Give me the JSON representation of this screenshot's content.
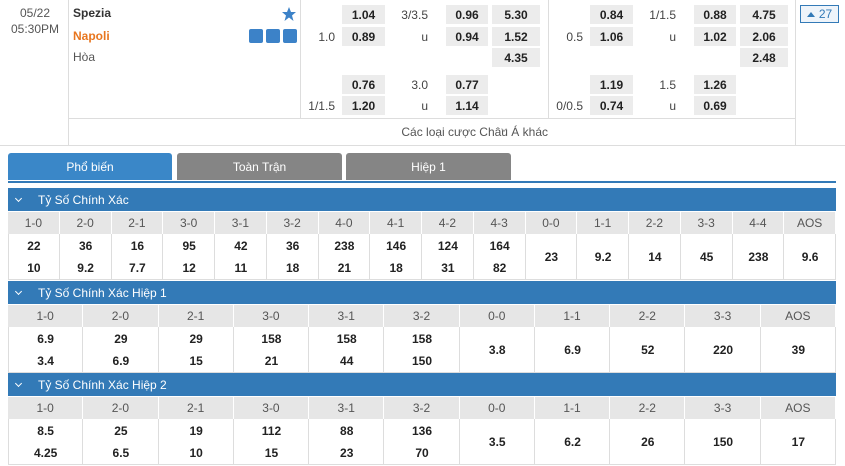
{
  "match": {
    "date": "05/22",
    "time": "05:30PM",
    "home": "Spezia",
    "away": "Napoli",
    "draw": "Hòa",
    "more_count": "27"
  },
  "odds": {
    "full_time": [
      [
        null,
        "1.04",
        "3/3.5",
        "0.96",
        "5.30"
      ],
      [
        "1.0",
        "0.89",
        "u",
        "0.94",
        "1.52"
      ],
      [
        null,
        null,
        null,
        null,
        "4.35"
      ],
      [
        null,
        "0.76",
        "3.0",
        "0.77",
        null
      ],
      [
        "1/1.5",
        "1.20",
        "u",
        "1.14",
        null
      ]
    ],
    "first_half": [
      [
        null,
        "0.84",
        "1/1.5",
        "0.88",
        "4.75"
      ],
      [
        "0.5",
        "1.06",
        "u",
        "1.02",
        "2.06"
      ],
      [
        null,
        null,
        null,
        null,
        "2.48"
      ],
      [
        null,
        "1.19",
        "1.5",
        "1.26",
        null
      ],
      [
        "0/0.5",
        "0.74",
        "u",
        "0.69",
        null
      ]
    ]
  },
  "more_link": "Các loại cược Châu Á khác",
  "tabs": [
    "Phổ biến",
    "Toàn Trận",
    "Hiệp 1"
  ],
  "sections": [
    {
      "title": "Tỷ Số Chính Xác",
      "scores": [
        "1-0",
        "2-0",
        "2-1",
        "3-0",
        "3-1",
        "3-2",
        "4-0",
        "4-1",
        "4-2",
        "4-3",
        "0-0",
        "1-1",
        "2-2",
        "3-3",
        "4-4",
        "AOS"
      ],
      "home": [
        "22",
        "36",
        "16",
        "95",
        "42",
        "36",
        "238",
        "146",
        "124",
        "164"
      ],
      "away": [
        "10",
        "9.2",
        "7.7",
        "12",
        "11",
        "18",
        "21",
        "18",
        "31",
        "82"
      ],
      "draws": [
        "23",
        "9.2",
        "14",
        "45",
        "238",
        "9.6"
      ]
    },
    {
      "title": "Tỷ Số Chính Xác Hiệp 1",
      "scores": [
        "1-0",
        "2-0",
        "2-1",
        "3-0",
        "3-1",
        "3-2",
        "0-0",
        "1-1",
        "2-2",
        "3-3",
        "AOS"
      ],
      "home": [
        "6.9",
        "29",
        "29",
        "158",
        "158",
        "158"
      ],
      "away": [
        "3.4",
        "6.9",
        "15",
        "21",
        "44",
        "150"
      ],
      "draws": [
        "3.8",
        "6.9",
        "52",
        "220",
        "39"
      ]
    },
    {
      "title": "Tỷ Số Chính Xác Hiệp 2",
      "scores": [
        "1-0",
        "2-0",
        "2-1",
        "3-0",
        "3-1",
        "3-2",
        "0-0",
        "1-1",
        "2-2",
        "3-3",
        "AOS"
      ],
      "home": [
        "8.5",
        "25",
        "19",
        "112",
        "88",
        "136"
      ],
      "away": [
        "4.25",
        "6.5",
        "10",
        "15",
        "23",
        "70"
      ],
      "draws": [
        "3.5",
        "6.2",
        "26",
        "150",
        "17"
      ]
    }
  ]
}
